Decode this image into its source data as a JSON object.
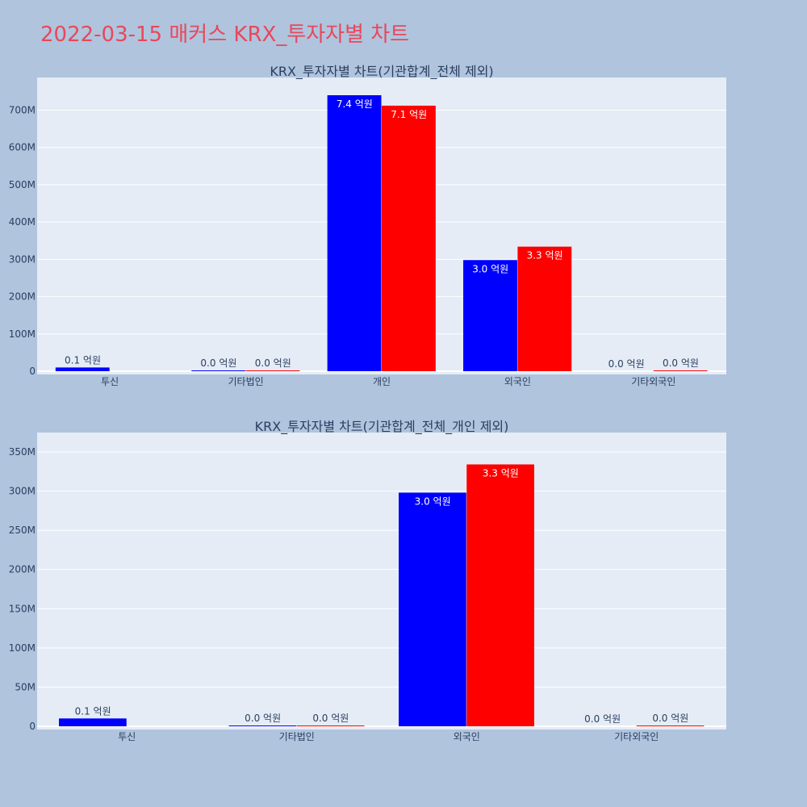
{
  "page": {
    "title": "2022-03-15 매커스 KRX_투자자별 차트",
    "colors": {
      "background": "#b0c4de",
      "plot": "#e5ecf6",
      "title": "#e8485b",
      "text": "#2a3f5f",
      "series_a": "#0000ff",
      "series_b": "#ff0000"
    }
  },
  "chart_data": [
    {
      "type": "bar",
      "title": "KRX_투자자별 차트(기관합계_전체 제외)",
      "categories": [
        "투신",
        "기타법인",
        "개인",
        "외국인",
        "기타외국인"
      ],
      "series": [
        {
          "color": "#0000ff",
          "values": [
            10000000,
            1000000,
            740000000,
            298000000,
            0
          ],
          "labels": [
            "0.1 억원",
            "0.0 억원",
            "7.4 억원",
            "3.0 억원",
            "0.0 억원"
          ]
        },
        {
          "color": "#ff0000",
          "values": [
            0,
            1000000,
            712000000,
            334000000,
            1000000
          ],
          "labels": [
            "",
            "0.0 억원",
            "7.1 억원",
            "3.3 억원",
            "0.0 억원"
          ]
        }
      ],
      "ylim": [
        0,
        740000000
      ],
      "yticks": [
        0,
        100000000,
        200000000,
        300000000,
        400000000,
        500000000,
        600000000,
        700000000
      ],
      "ytick_labels": [
        "0",
        "100M",
        "200M",
        "300M",
        "400M",
        "500M",
        "600M",
        "700M"
      ],
      "grid": true
    },
    {
      "type": "bar",
      "title": "KRX_투자자별 차트(기관합계_전체_개인 제외)",
      "categories": [
        "투신",
        "기타법인",
        "외국인",
        "기타외국인"
      ],
      "series": [
        {
          "color": "#0000ff",
          "values": [
            10000000,
            1000000,
            298000000,
            0
          ],
          "labels": [
            "0.1 억원",
            "0.0 억원",
            "3.0 억원",
            "0.0 억원"
          ]
        },
        {
          "color": "#ff0000",
          "values": [
            0,
            1000000,
            334000000,
            1000000
          ],
          "labels": [
            "",
            "0.0 억원",
            "3.3 억원",
            "0.0 억원"
          ]
        }
      ],
      "ylim": [
        0,
        352000000
      ],
      "yticks": [
        0,
        50000000,
        100000000,
        150000000,
        200000000,
        250000000,
        300000000,
        350000000
      ],
      "ytick_labels": [
        "0",
        "50M",
        "100M",
        "150M",
        "200M",
        "250M",
        "300M",
        "350M"
      ],
      "grid": true
    }
  ]
}
